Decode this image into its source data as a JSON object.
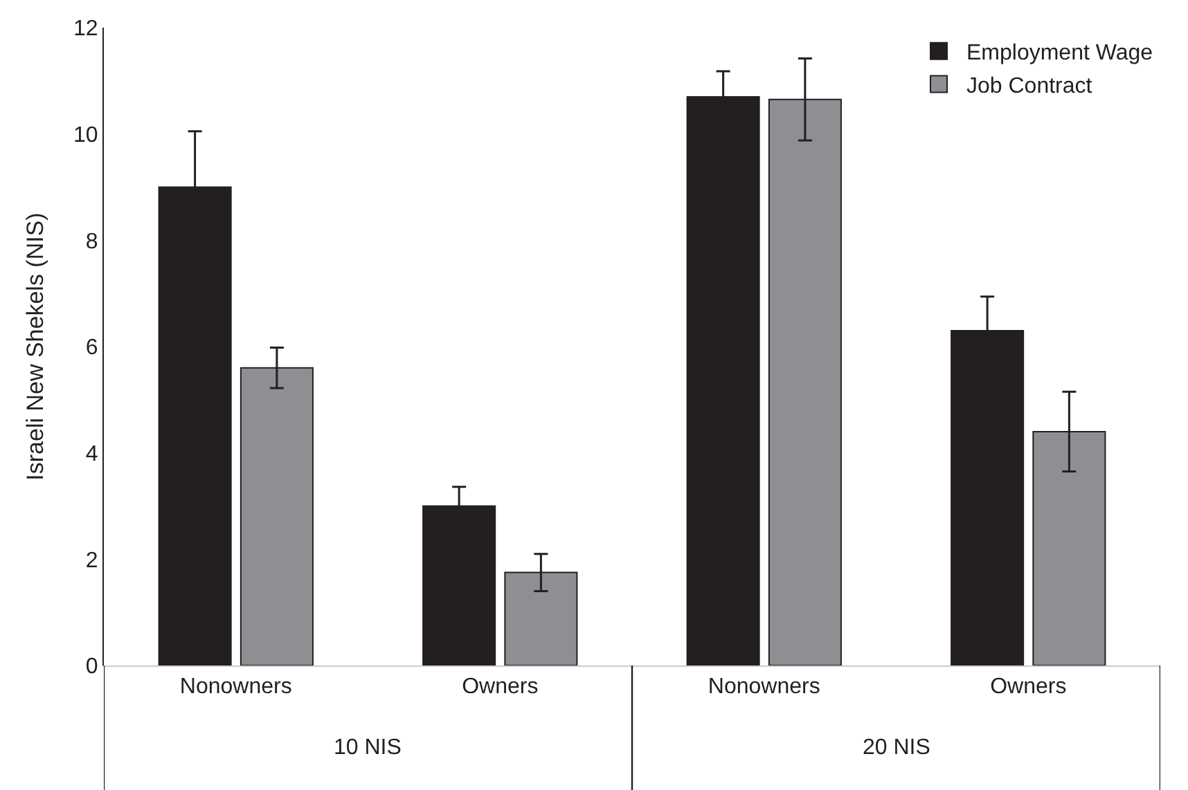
{
  "chart_data": {
    "type": "bar",
    "ylabel": "Israeli New Shekels (NIS)",
    "categories": [
      "Nonowners",
      "Owners",
      "Nonowners",
      "Owners"
    ],
    "series": [
      {
        "name": "Employment Wage",
        "color": "#231f20",
        "values": [
          9.0,
          3.0,
          10.7,
          6.3
        ],
        "errors": [
          1.05,
          0.36,
          0.48,
          0.64
        ]
      },
      {
        "name": "Job Contract",
        "color": "#8e8f92",
        "values": [
          5.6,
          1.75,
          10.65,
          4.4
        ],
        "errors": [
          0.38,
          0.35,
          0.77,
          0.75
        ]
      }
    ],
    "annotations": [
      "10 NIS",
      "20 NIS"
    ],
    "ylim": [
      0,
      12
    ],
    "yticks": [
      0,
      2,
      4,
      6,
      8,
      10,
      12
    ],
    "grid": false,
    "legend": "top right"
  }
}
